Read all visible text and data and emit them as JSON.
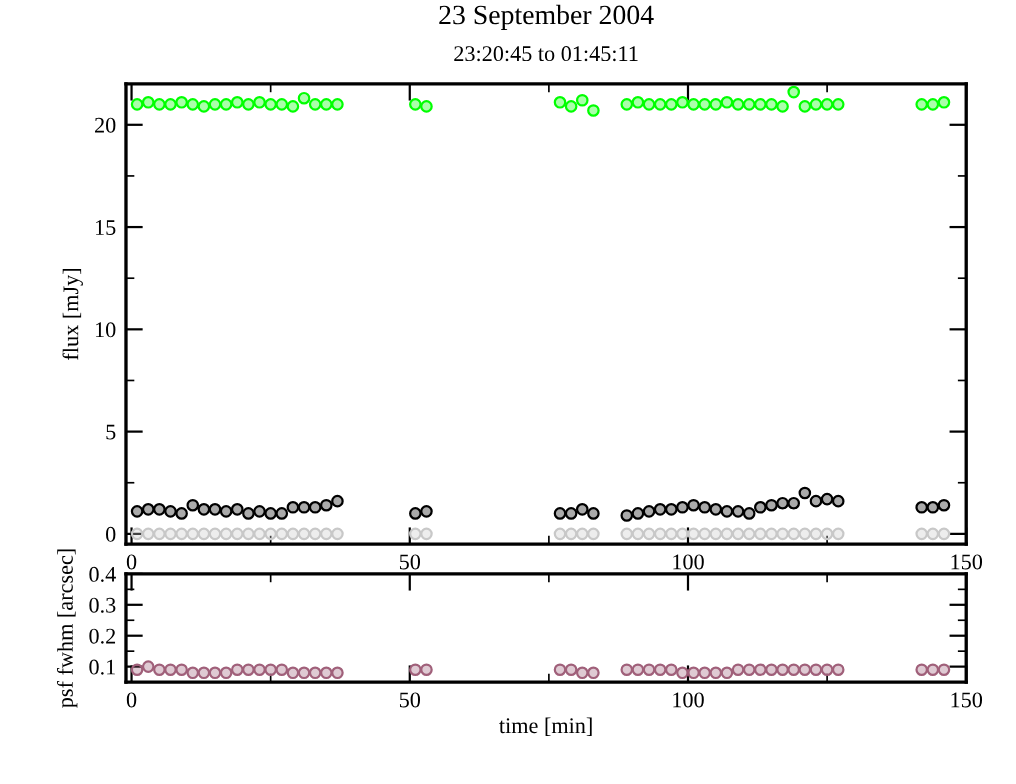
{
  "chart_data": [
    {
      "type": "scatter",
      "title": "23 September 2004",
      "subtitle": "23:20:45 to 01:45:11",
      "ylabel": "flux [mJy]",
      "marker": "circle",
      "grid": false,
      "legend": false,
      "x": [
        1,
        3,
        5,
        7,
        9,
        11,
        13,
        15,
        17,
        19,
        21,
        23,
        25,
        27,
        29,
        31,
        33,
        35,
        37,
        51,
        53,
        77,
        79,
        81,
        83,
        89,
        91,
        93,
        95,
        97,
        99,
        101,
        103,
        105,
        107,
        109,
        111,
        113,
        115,
        117,
        119,
        121,
        123,
        125,
        127,
        142,
        144,
        146
      ],
      "xlim": [
        -1,
        150
      ],
      "xticks": [
        0,
        {
          "value": 25,
          "label": null
        },
        50,
        {
          "value": 75,
          "label": null
        },
        100,
        {
          "value": 125,
          "label": null
        },
        150
      ],
      "ylim": [
        -0.5,
        22
      ],
      "yticks": [
        0,
        {
          "value": 2.5,
          "label": null
        },
        5,
        {
          "value": 7.5,
          "label": null
        },
        10,
        {
          "value": 12.5,
          "label": null
        },
        15,
        {
          "value": 17.5,
          "label": null
        },
        20
      ],
      "series": [
        {
          "color": "#00ff00",
          "values": [
            21.0,
            21.1,
            21.0,
            21.0,
            21.1,
            21.0,
            20.9,
            21.0,
            21.0,
            21.1,
            21.0,
            21.1,
            21.0,
            21.0,
            20.9,
            21.3,
            21.0,
            21.0,
            21.0,
            21.0,
            20.9,
            21.1,
            20.9,
            21.2,
            20.7,
            21.0,
            21.1,
            21.0,
            21.0,
            21.0,
            21.1,
            21.0,
            21.0,
            21.0,
            21.1,
            21.0,
            21.0,
            21.0,
            21.0,
            20.9,
            21.6,
            20.9,
            21.0,
            21.0,
            21.0,
            21.0,
            21.0,
            21.1
          ]
        },
        {
          "color": "#000000",
          "values": [
            1.1,
            1.2,
            1.2,
            1.1,
            1.0,
            1.4,
            1.2,
            1.2,
            1.1,
            1.2,
            1.0,
            1.1,
            1.0,
            1.0,
            1.3,
            1.3,
            1.3,
            1.4,
            1.6,
            1.0,
            1.1,
            1.0,
            1.0,
            1.2,
            1.0,
            0.9,
            1.0,
            1.1,
            1.2,
            1.2,
            1.3,
            1.4,
            1.3,
            1.2,
            1.1,
            1.1,
            1.0,
            1.3,
            1.4,
            1.5,
            1.5,
            2.0,
            1.6,
            1.7,
            1.6,
            1.3,
            1.3,
            1.4
          ]
        },
        {
          "color": "#c8c8c8",
          "values": [
            0,
            0,
            0,
            0,
            0,
            0,
            0,
            0,
            0,
            0,
            0,
            0,
            0,
            0,
            0,
            0,
            0,
            0,
            0,
            0,
            0,
            0,
            0,
            0,
            0,
            0,
            0,
            0,
            0,
            0,
            0,
            0,
            0,
            0,
            0,
            0,
            0,
            0,
            0,
            0,
            0,
            0,
            0,
            0,
            0,
            0,
            0,
            0
          ]
        }
      ]
    },
    {
      "type": "scatter",
      "xlabel": "time [min]",
      "ylabel": "psf fwhm [arcsec]",
      "marker": "circle",
      "grid": false,
      "legend": false,
      "x": [
        1,
        3,
        5,
        7,
        9,
        11,
        13,
        15,
        17,
        19,
        21,
        23,
        25,
        27,
        29,
        31,
        33,
        35,
        37,
        51,
        53,
        77,
        79,
        81,
        83,
        89,
        91,
        93,
        95,
        97,
        99,
        101,
        103,
        105,
        107,
        109,
        111,
        113,
        115,
        117,
        119,
        121,
        123,
        125,
        127,
        142,
        144,
        146
      ],
      "xlim": [
        -1,
        150
      ],
      "xticks": [
        0,
        {
          "value": 25,
          "label": null
        },
        50,
        {
          "value": 75,
          "label": null
        },
        100,
        {
          "value": 125,
          "label": null
        },
        150
      ],
      "ylim": [
        0.05,
        0.4
      ],
      "yticks": [
        0.1,
        {
          "value": 0.15,
          "label": null
        },
        0.2,
        {
          "value": 0.25,
          "label": null
        },
        0.3,
        {
          "value": 0.35,
          "label": null
        },
        0.4
      ],
      "series": [
        {
          "color": "#a0607a",
          "values": [
            0.09,
            0.1,
            0.09,
            0.09,
            0.09,
            0.08,
            0.08,
            0.08,
            0.08,
            0.09,
            0.09,
            0.09,
            0.09,
            0.09,
            0.08,
            0.08,
            0.08,
            0.08,
            0.08,
            0.09,
            0.09,
            0.09,
            0.09,
            0.08,
            0.08,
            0.09,
            0.09,
            0.09,
            0.09,
            0.09,
            0.08,
            0.08,
            0.08,
            0.08,
            0.08,
            0.09,
            0.09,
            0.09,
            0.09,
            0.09,
            0.09,
            0.09,
            0.09,
            0.09,
            0.09,
            0.09,
            0.09,
            0.09
          ]
        }
      ]
    }
  ]
}
